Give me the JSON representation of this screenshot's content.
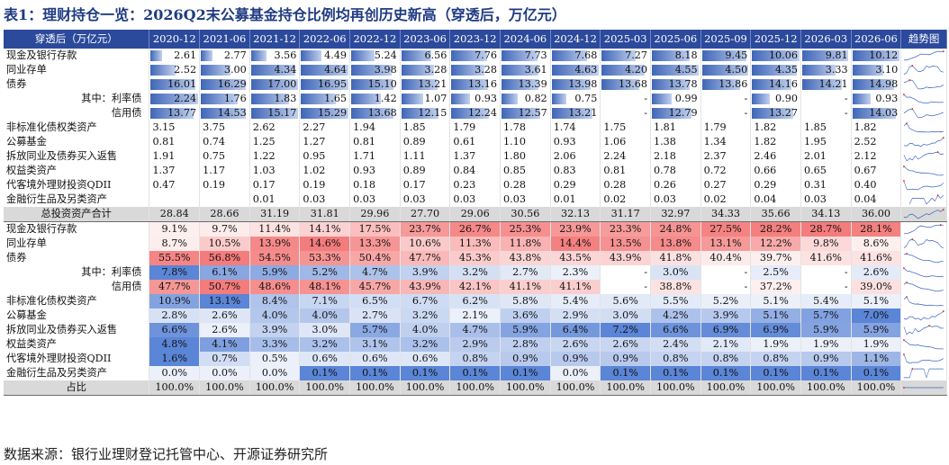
{
  "title": "表1：理财持仓一览：2026Q2末公募基金持仓比例均再创历史新高（穿透后，万亿元）",
  "source": "数据来源：银行业理财登记托管中心、开源证券研究所",
  "header": {
    "first": "穿透后（万亿元）",
    "periods": [
      "2020-12",
      "2021-06",
      "2021-12",
      "2022-06",
      "2022-12",
      "2023-06",
      "2023-12",
      "2024-06",
      "2024-12",
      "2025-03",
      "2025-06",
      "2025-09",
      "2025-12",
      "2026-03",
      "2026-06"
    ],
    "trend": "趋势图"
  },
  "colors": {
    "header_bg": "#2c4a9c",
    "bar": "#3f66b8",
    "heat_red": "#f47c7c",
    "heat_blue": "#5b85d6",
    "total_bg": "#d9d9d9"
  },
  "amount_rows": [
    {
      "label": "现金及银行存款",
      "style": "main",
      "align": "right",
      "bars": true,
      "values": [
        "2.61",
        "2.77",
        "3.56",
        "4.49",
        "5.24",
        "6.56",
        "7.76",
        "7.73",
        "7.68",
        "7.27",
        "8.18",
        "9.45",
        "10.06",
        "9.81",
        "10.12"
      ]
    },
    {
      "label": "同业存单",
      "style": "main",
      "align": "right",
      "bars": true,
      "values": [
        "2.52",
        "3.00",
        "4.34",
        "4.64",
        "3.98",
        "3.28",
        "3.28",
        "3.61",
        "4.63",
        "4.20",
        "4.55",
        "4.50",
        "4.35",
        "3.33",
        "3.10"
      ]
    },
    {
      "label": "债券",
      "style": "main",
      "align": "right",
      "bars": true,
      "values": [
        "16.01",
        "16.29",
        "17.00",
        "16.95",
        "15.10",
        "13.21",
        "13.16",
        "13.39",
        "13.98",
        "13.68",
        "13.78",
        "13.86",
        "14.16",
        "14.21",
        "14.98"
      ]
    },
    {
      "label": "其中：利率债",
      "style": "sub",
      "align": "right",
      "bars": true,
      "values": [
        "2.24",
        "1.76",
        "1.83",
        "1.65",
        "1.42",
        "1.07",
        "0.93",
        "0.82",
        "0.75",
        "-",
        "0.99",
        "-",
        "0.90",
        "-",
        "0.93"
      ]
    },
    {
      "label": "信用债",
      "style": "sub",
      "align": "right",
      "bars": true,
      "values": [
        "13.77",
        "14.53",
        "15.17",
        "15.29",
        "13.68",
        "12.15",
        "12.24",
        "12.57",
        "13.21",
        "-",
        "12.79",
        "-",
        "13.27",
        "-",
        "14.03"
      ]
    },
    {
      "label": "非标准化债权类资产",
      "style": "main",
      "align": "left",
      "bars": false,
      "values": [
        "3.15",
        "3.75",
        "2.62",
        "2.27",
        "1.94",
        "1.85",
        "1.79",
        "1.78",
        "1.74",
        "1.75",
        "1.81",
        "1.79",
        "1.82",
        "1.85",
        "1.82"
      ]
    },
    {
      "label": "公募基金",
      "style": "main",
      "align": "left",
      "bars": false,
      "values": [
        "0.81",
        "0.74",
        "1.25",
        "1.27",
        "0.81",
        "0.89",
        "0.61",
        "1.10",
        "0.93",
        "1.06",
        "1.38",
        "1.34",
        "1.82",
        "1.95",
        "2.52"
      ]
    },
    {
      "label": "拆放同业及债券买入返售",
      "style": "main",
      "align": "left",
      "bars": false,
      "values": [
        "1.91",
        "0.75",
        "1.22",
        "0.95",
        "1.71",
        "1.11",
        "1.37",
        "1.80",
        "2.06",
        "2.24",
        "2.18",
        "2.37",
        "2.46",
        "2.01",
        "2.12"
      ]
    },
    {
      "label": "权益类资产",
      "style": "main",
      "align": "left",
      "bars": false,
      "values": [
        "1.37",
        "1.17",
        "1.03",
        "1.02",
        "0.93",
        "0.89",
        "0.84",
        "0.85",
        "0.83",
        "0.81",
        "0.78",
        "0.72",
        "0.66",
        "0.65",
        "0.67"
      ]
    },
    {
      "label": "代客境外理财投资QDII",
      "style": "main",
      "align": "left",
      "bars": false,
      "values": [
        "0.47",
        "0.19",
        "0.17",
        "0.19",
        "0.18",
        "0.17",
        "0.23",
        "0.28",
        "0.29",
        "0.28",
        "0.26",
        "0.27",
        "0.29",
        "0.31",
        "0.40"
      ]
    },
    {
      "label": "金融衍生品及另类资产",
      "style": "main",
      "align": "left",
      "bars": false,
      "values": [
        "",
        "",
        "0.01",
        "0.03",
        "0.03",
        "0.03",
        "0.03",
        "0.03",
        "0.01",
        "0.02",
        "0.03",
        "0.02",
        "0.04",
        "0.03",
        "0.04"
      ]
    },
    {
      "label": "总投资资产合计",
      "style": "total",
      "align": "center",
      "bars": false,
      "values": [
        "28.84",
        "28.66",
        "31.19",
        "31.81",
        "29.96",
        "27.70",
        "29.06",
        "30.56",
        "32.13",
        "31.17",
        "32.97",
        "34.33",
        "35.66",
        "34.13",
        "36.00"
      ]
    }
  ],
  "share_rows": [
    {
      "label": "现金及银行存款",
      "style": "main",
      "heat": "red",
      "values": [
        "9.1%",
        "9.7%",
        "11.4%",
        "14.1%",
        "17.5%",
        "23.7%",
        "26.7%",
        "25.3%",
        "23.9%",
        "23.3%",
        "24.8%",
        "27.5%",
        "28.2%",
        "28.7%",
        "28.1%"
      ]
    },
    {
      "label": "同业存单",
      "style": "main",
      "heat": "red",
      "values": [
        "8.7%",
        "10.5%",
        "13.9%",
        "14.6%",
        "13.3%",
        "10.6%",
        "11.3%",
        "11.8%",
        "14.4%",
        "13.5%",
        "13.8%",
        "13.1%",
        "12.2%",
        "9.8%",
        "8.6%"
      ]
    },
    {
      "label": "债券",
      "style": "main",
      "heat": "red",
      "values": [
        "55.5%",
        "56.8%",
        "54.5%",
        "53.3%",
        "50.4%",
        "47.7%",
        "45.3%",
        "43.8%",
        "43.5%",
        "43.9%",
        "41.8%",
        "40.4%",
        "39.7%",
        "41.6%",
        "41.6%"
      ]
    },
    {
      "label": "其中：利率债",
      "style": "sub",
      "heat": "blue",
      "values": [
        "7.8%",
        "6.1%",
        "5.9%",
        "5.2%",
        "4.7%",
        "3.9%",
        "3.2%",
        "2.7%",
        "2.3%",
        "-",
        "3.0%",
        "-",
        "2.5%",
        "-",
        "2.6%"
      ]
    },
    {
      "label": "信用债",
      "style": "sub",
      "heat": "red",
      "values": [
        "47.7%",
        "50.7%",
        "48.6%",
        "48.1%",
        "45.7%",
        "43.9%",
        "42.1%",
        "41.1%",
        "41.1%",
        "-",
        "38.8%",
        "-",
        "37.2%",
        "-",
        "39.0%"
      ]
    },
    {
      "label": "非标准化债权类资产",
      "style": "main",
      "heat": "blue",
      "values": [
        "10.9%",
        "13.1%",
        "8.4%",
        "7.1%",
        "6.5%",
        "6.7%",
        "6.2%",
        "5.8%",
        "5.4%",
        "5.6%",
        "5.5%",
        "5.2%",
        "5.1%",
        "5.4%",
        "5.1%"
      ]
    },
    {
      "label": "公募基金",
      "style": "main",
      "heat": "blue",
      "values": [
        "2.8%",
        "2.6%",
        "4.0%",
        "4.0%",
        "2.7%",
        "3.2%",
        "2.1%",
        "3.6%",
        "2.9%",
        "3.0%",
        "4.2%",
        "3.9%",
        "5.1%",
        "5.7%",
        "7.0%"
      ]
    },
    {
      "label": "拆放同业及债券买入返售",
      "style": "main",
      "heat": "blue",
      "values": [
        "6.6%",
        "2.6%",
        "3.9%",
        "3.0%",
        "5.7%",
        "4.0%",
        "4.7%",
        "5.9%",
        "6.4%",
        "7.2%",
        "6.6%",
        "6.9%",
        "6.9%",
        "5.9%",
        "5.9%"
      ]
    },
    {
      "label": "权益类资产",
      "style": "main",
      "heat": "blue",
      "values": [
        "4.8%",
        "4.1%",
        "3.3%",
        "3.2%",
        "3.1%",
        "3.2%",
        "2.9%",
        "2.8%",
        "2.6%",
        "2.6%",
        "2.4%",
        "2.1%",
        "1.9%",
        "1.9%",
        "1.9%"
      ]
    },
    {
      "label": "代客境外理财投资QDII",
      "style": "main",
      "heat": "blue",
      "values": [
        "1.6%",
        "0.7%",
        "0.5%",
        "0.6%",
        "0.6%",
        "0.6%",
        "0.8%",
        "0.9%",
        "0.9%",
        "0.9%",
        "0.8%",
        "0.8%",
        "0.8%",
        "0.9%",
        "1.1%"
      ]
    },
    {
      "label": "金融衍生品及另类资产",
      "style": "main",
      "heat": "blue",
      "values": [
        "0.0%",
        "0.0%",
        "0.0%",
        "0.1%",
        "0.1%",
        "0.1%",
        "0.1%",
        "0.1%",
        "0.0%",
        "0.1%",
        "0.1%",
        "0.1%",
        "0.1%",
        "0.1%",
        "0.1%"
      ]
    },
    {
      "label": "占比",
      "style": "total",
      "heat": "none",
      "values": [
        "100.0%",
        "100.0%",
        "100.0%",
        "100.0%",
        "100.0%",
        "100.0%",
        "100.0%",
        "100.0%",
        "100.0%",
        "100.0%",
        "100.0%",
        "100.0%",
        "100.0%",
        "100.0%",
        "100.0%"
      ]
    }
  ]
}
